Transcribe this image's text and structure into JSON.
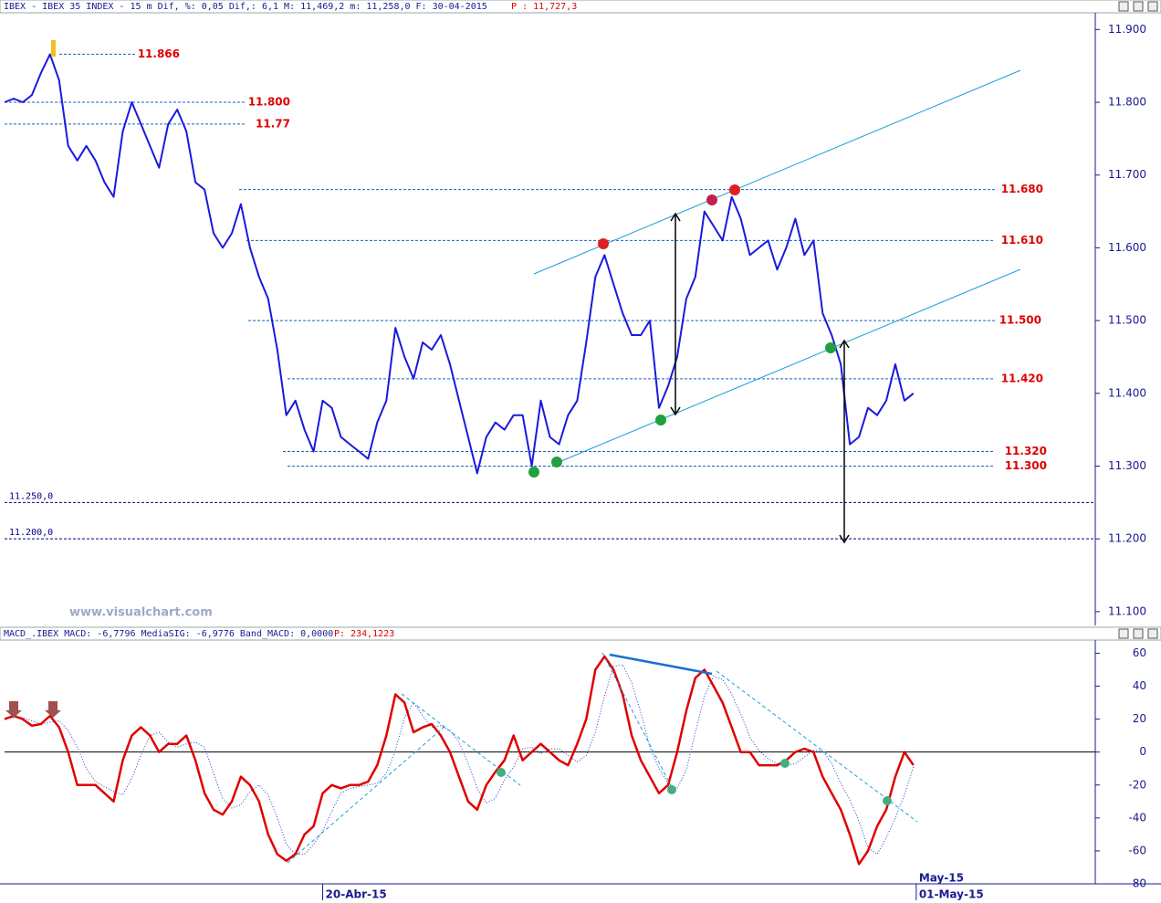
{
  "chart_data": [
    {
      "type": "line",
      "title": "IBEX - IBEX 35 INDEX - 15 m Dif, %: 0,05 Dif,: 6,1 M: 11,469,2 m: 11,258,0 F: 30-04-2015",
      "title_extra": "P : 11,727,3",
      "watermark": "www.visualchart.com",
      "xlim": [
        0,
        120
      ],
      "ylim": [
        11.081,
        11.923
      ],
      "yticks": [
        {
          "value": 11.9,
          "label": "11.900"
        },
        {
          "value": 11.8,
          "label": "11.800"
        },
        {
          "value": 11.7,
          "label": "11.700"
        },
        {
          "value": 11.6,
          "label": "11.600"
        },
        {
          "value": 11.5,
          "label": "11.500"
        },
        {
          "value": 11.4,
          "label": "11.400"
        },
        {
          "value": 11.3,
          "label": "11.300"
        },
        {
          "value": 11.2,
          "label": "11.200"
        },
        {
          "value": 11.1,
          "label": "11.100"
        }
      ],
      "levels": [
        11.866,
        {
          "value": 11.8,
          "label": "11.800"
        },
        11.77,
        {
          "value": 11.68,
          "label": "11.680"
        },
        {
          "value": 11.61,
          "label": "11.610"
        },
        {
          "value": 11.5,
          "label": "11.500"
        },
        {
          "value": 11.42,
          "label": "11.420"
        },
        {
          "value": 11.32,
          "label": "11.320"
        },
        {
          "value": 11.3,
          "label": "11.300"
        }
      ],
      "level_color": "#e00000",
      "supports": [
        {
          "value": 11.25,
          "label": "11.250,0"
        },
        {
          "value": 11.2,
          "label": "11.200,0"
        }
      ],
      "support_color": "#000080",
      "series": [
        {
          "name": "IBEX",
          "color": "#1a1adc",
          "values": [
            11.8,
            11.805,
            11.8,
            11.81,
            11.84,
            11.866,
            11.83,
            11.74,
            11.72,
            11.74,
            11.72,
            11.69,
            11.67,
            11.76,
            11.8,
            11.77,
            11.74,
            11.71,
            11.77,
            11.79,
            11.76,
            11.69,
            11.68,
            11.62,
            11.6,
            11.62,
            11.66,
            11.6,
            11.56,
            11.53,
            11.46,
            11.37,
            11.39,
            11.35,
            11.32,
            11.39,
            11.38,
            11.34,
            11.33,
            11.32,
            11.31,
            11.36,
            11.39,
            11.49,
            11.45,
            11.42,
            11.47,
            11.46,
            11.48,
            11.44,
            11.39,
            11.34,
            11.29,
            11.34,
            11.36,
            11.35,
            11.37,
            11.37,
            11.3,
            11.39,
            11.34,
            11.33,
            11.37,
            11.39,
            11.47,
            11.56,
            11.59,
            11.55,
            11.51,
            11.48,
            11.48,
            11.5,
            11.38,
            11.41,
            11.45,
            11.53,
            11.56,
            11.65,
            11.63,
            11.61,
            11.67,
            11.64,
            11.59,
            11.6,
            11.61,
            11.57,
            11.6,
            11.64,
            11.59,
            11.61,
            11.51,
            11.48,
            11.44,
            11.33,
            11.34,
            11.38,
            11.37,
            11.39,
            11.44,
            11.39,
            11.4
          ]
        }
      ]
    },
    {
      "type": "line",
      "title": "MACD_.IBEX MACD: -6,7796 MediaSIG: -6,9776 Band_MACD: 0,0000",
      "title_extra": "P: 234,1223",
      "xlim": [
        0,
        120
      ],
      "ylim": [
        -80,
        68
      ],
      "yticks": [
        60,
        40,
        20,
        0,
        -20,
        -40,
        -60,
        -80
      ],
      "xticks": [
        {
          "value": 35,
          "label": "20-Abr-15"
        },
        {
          "value": 100.3,
          "label": "01-May-15"
        }
      ],
      "month_ticks": [
        {
          "value": 100.3,
          "label": "May-15"
        }
      ],
      "series": [
        {
          "name": "MACD",
          "color": "#e00000",
          "values": [
            20,
            22,
            20,
            16,
            17,
            22,
            15,
            0,
            -20,
            -20,
            -20,
            -25,
            -30,
            -5,
            10,
            15,
            10,
            0,
            5,
            5,
            10,
            -5,
            -25,
            -35,
            -38,
            -30,
            -15,
            -20,
            -30,
            -50,
            -62,
            -66,
            -62,
            -50,
            -45,
            -25,
            -20,
            -22,
            -20,
            -20,
            -18,
            -8,
            10,
            35,
            30,
            12,
            15,
            17,
            10,
            0,
            -15,
            -30,
            -35,
            -20,
            -12,
            -5,
            10,
            -5,
            0,
            5,
            0,
            -5,
            -8,
            5,
            20,
            50,
            58,
            50,
            35,
            10,
            -5,
            -15,
            -25,
            -20,
            0,
            25,
            45,
            50,
            40,
            30,
            15,
            0,
            0,
            -8,
            -8,
            -8,
            -5,
            0,
            2,
            0,
            -15,
            -25,
            -35,
            -50,
            -68,
            -60,
            -45,
            -35,
            -15,
            0,
            -8
          ]
        },
        {
          "name": "MediaSIG",
          "color": "#2040c0",
          "values": [
            20,
            21,
            21,
            19,
            17,
            18,
            19,
            13,
            3,
            -10,
            -18,
            -21,
            -24,
            -26,
            -16,
            -2,
            10,
            12,
            6,
            3,
            5,
            6,
            3,
            -13,
            -28,
            -34,
            -32,
            -24,
            -20,
            -26,
            -40,
            -56,
            -62,
            -62,
            -56,
            -48,
            -36,
            -25,
            -22,
            -21,
            -20,
            -19,
            -13,
            1,
            21,
            30,
            22,
            15,
            16,
            13,
            6,
            -7,
            -22,
            -31,
            -28,
            -17,
            -9,
            2,
            3,
            -1,
            2,
            2,
            -2,
            -6,
            -2,
            12,
            34,
            52,
            53,
            42,
            24,
            3,
            -10,
            -19,
            -22,
            -11,
            12,
            34,
            46,
            44,
            35,
            23,
            9,
            1,
            -4,
            -7,
            -8,
            -7,
            -3,
            1,
            1,
            -7,
            -19,
            -29,
            -42,
            -58,
            -62,
            -52,
            -40,
            -26,
            -9
          ]
        }
      ]
    }
  ]
}
